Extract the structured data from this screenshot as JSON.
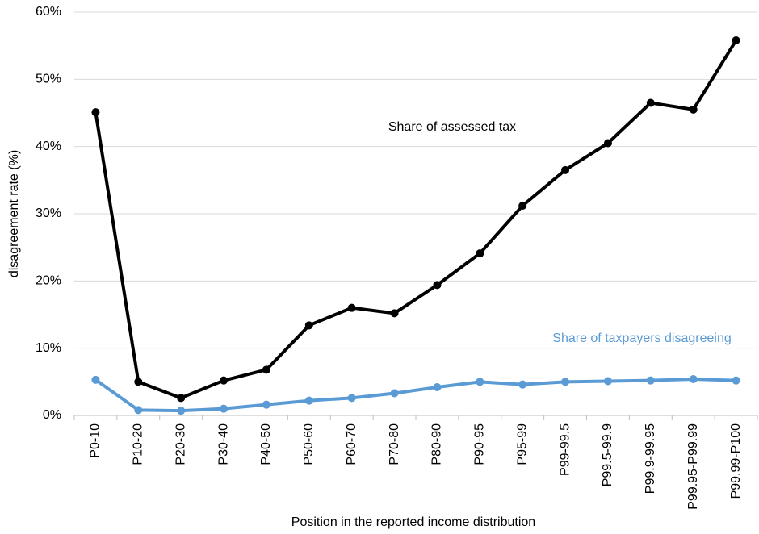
{
  "chart_data": {
    "type": "line",
    "y_axis_label": "disagreement rate (%)",
    "x_axis_label": "Position in the reported income distribution",
    "categories": [
      "P0-10",
      "P10-20",
      "P20-30",
      "P30-40",
      "P40-50",
      "P50-60",
      "P60-70",
      "P70-80",
      "P80-90",
      "P90-95",
      "P95-99",
      "P99-99.5",
      "P99.5-99.9",
      "P99.9-99.95",
      "P99.95-P99.99",
      "P99.99-P100"
    ],
    "series": [
      {
        "name": "Share of assessed tax",
        "color": "#000000",
        "values": [
          45.1,
          5.0,
          2.6,
          5.2,
          6.8,
          13.4,
          16.0,
          15.2,
          19.4,
          24.1,
          31.2,
          36.5,
          40.5,
          46.5,
          45.5,
          55.8
        ]
      },
      {
        "name": "Share of taxpayers disagreeing",
        "color": "#5b9bd5",
        "values": [
          5.3,
          0.8,
          0.7,
          1.0,
          1.6,
          2.2,
          2.6,
          3.3,
          4.2,
          5.0,
          4.6,
          5.0,
          5.1,
          5.2,
          5.4,
          5.2
        ]
      }
    ],
    "ylim": [
      0,
      60
    ],
    "yticks": [
      {
        "value": 0,
        "label": "0%"
      },
      {
        "value": 10,
        "label": "10%"
      },
      {
        "value": 20,
        "label": "20%"
      },
      {
        "value": 30,
        "label": "30%"
      },
      {
        "value": 40,
        "label": "40%"
      },
      {
        "value": 50,
        "label": "50%"
      },
      {
        "value": 60,
        "label": "60%"
      }
    ],
    "grid": true
  }
}
